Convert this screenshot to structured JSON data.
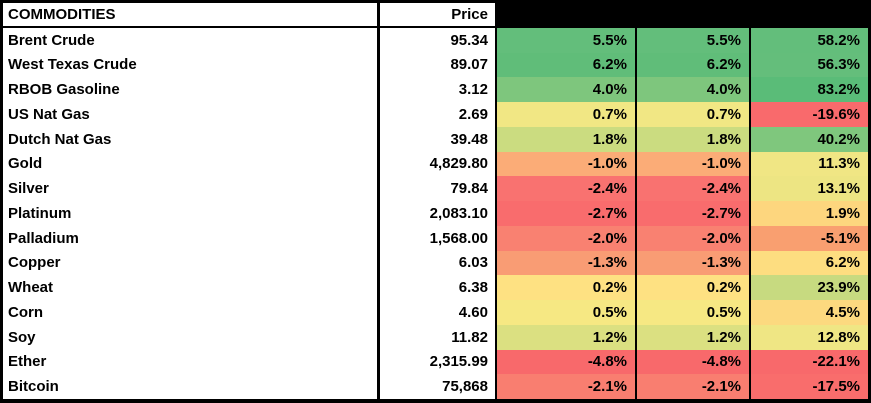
{
  "table": {
    "header": {
      "commodities": "COMMODITIES",
      "price": "Price",
      "change_columns": [
        "",
        "",
        ""
      ]
    },
    "rows": [
      {
        "name": "Brent Crude",
        "price": "95.34",
        "chg1": "5.5%",
        "chg2": "5.5%",
        "chg3": "58.2%",
        "color1": "#63BE7B",
        "color2": "#63BE7B",
        "color3": "#63BE7B"
      },
      {
        "name": "West Texas Crude",
        "price": "89.07",
        "chg1": "6.2%",
        "chg2": "6.2%",
        "chg3": "56.3%",
        "color1": "#60BD79",
        "color2": "#60BD79",
        "color3": "#64BE7B"
      },
      {
        "name": "RBOB Gasoline",
        "price": "3.12",
        "chg1": "4.0%",
        "chg2": "4.0%",
        "chg3": "83.2%",
        "color1": "#7EC67D",
        "color2": "#7EC67D",
        "color3": "#5ABC78"
      },
      {
        "name": "US Nat Gas",
        "price": "2.69",
        "chg1": "0.7%",
        "chg2": "0.7%",
        "chg3": "-19.6%",
        "color1": "#F1E784",
        "color2": "#F1E784",
        "color3": "#F96A6C"
      },
      {
        "name": "Dutch Nat Gas",
        "price": "39.48",
        "chg1": "1.8%",
        "chg2": "1.8%",
        "chg3": "40.2%",
        "color1": "#CBDC80",
        "color2": "#CBDC80",
        "color3": "#7FC77D"
      },
      {
        "name": "Gold",
        "price": "4,829.80",
        "chg1": "-1.0%",
        "chg2": "-1.0%",
        "chg3": "11.3%",
        "color1": "#FBAC77",
        "color2": "#FBAC77",
        "color3": "#F0E684"
      },
      {
        "name": "Silver",
        "price": "79.84",
        "chg1": "-2.4%",
        "chg2": "-2.4%",
        "chg3": "13.1%",
        "color1": "#F97270",
        "color2": "#F97270",
        "color3": "#EDE583"
      },
      {
        "name": "Platinum",
        "price": "2,083.10",
        "chg1": "-2.7%",
        "chg2": "-2.7%",
        "chg3": "1.9%",
        "color1": "#F96C6D",
        "color2": "#F96C6D",
        "color3": "#FDD67E"
      },
      {
        "name": "Palladium",
        "price": "1,568.00",
        "chg1": "-2.0%",
        "chg2": "-2.0%",
        "chg3": "-5.1%",
        "color1": "#F98171",
        "color2": "#F98171",
        "color3": "#F99F70"
      },
      {
        "name": "Copper",
        "price": "6.03",
        "chg1": "-1.3%",
        "chg2": "-1.3%",
        "chg3": "6.2%",
        "color1": "#F99C74",
        "color2": "#F99C74",
        "color3": "#FDDD80"
      },
      {
        "name": "Wheat",
        "price": "6.38",
        "chg1": "0.2%",
        "chg2": "0.2%",
        "chg3": "23.9%",
        "color1": "#FEE182",
        "color2": "#FEE182",
        "color3": "#C7DA80"
      },
      {
        "name": "Corn",
        "price": "4.60",
        "chg1": "0.5%",
        "chg2": "0.5%",
        "chg3": "4.5%",
        "color1": "#F6E883",
        "color2": "#F6E883",
        "color3": "#FCD97F"
      },
      {
        "name": "Soy",
        "price": "11.82",
        "chg1": "1.2%",
        "chg2": "1.2%",
        "chg3": "12.8%",
        "color1": "#DBE081",
        "color2": "#DBE081",
        "color3": "#EFE684"
      },
      {
        "name": "Ether",
        "price": "2,315.99",
        "chg1": "-4.8%",
        "chg2": "-4.8%",
        "chg3": "-22.1%",
        "color1": "#F8696B",
        "color2": "#F8696B",
        "color3": "#F8696B"
      },
      {
        "name": "Bitcoin",
        "price": "75,868",
        "chg1": "-2.1%",
        "chg2": "-2.1%",
        "chg3": "-17.5%",
        "color1": "#F97E70",
        "color2": "#F97E70",
        "color3": "#F96D6C"
      }
    ]
  },
  "chart_data": {
    "type": "table",
    "title": "COMMODITIES",
    "columns": [
      "COMMODITIES",
      "Price",
      "",
      "",
      ""
    ],
    "categories": [
      "Brent Crude",
      "West Texas Crude",
      "RBOB Gasoline",
      "US Nat Gas",
      "Dutch Nat Gas",
      "Gold",
      "Silver",
      "Platinum",
      "Palladium",
      "Copper",
      "Wheat",
      "Corn",
      "Soy",
      "Ether",
      "Bitcoin"
    ],
    "prices": [
      95.34,
      89.07,
      3.12,
      2.69,
      39.48,
      4829.8,
      79.84,
      2083.1,
      1568.0,
      6.03,
      6.38,
      4.6,
      11.82,
      2315.99,
      75868
    ],
    "series": [
      {
        "name": "change_col_1_pct",
        "values": [
          5.5,
          6.2,
          4.0,
          0.7,
          1.8,
          -1.0,
          -2.4,
          -2.7,
          -2.0,
          -1.3,
          0.2,
          0.5,
          1.2,
          -4.8,
          -2.1
        ]
      },
      {
        "name": "change_col_2_pct",
        "values": [
          5.5,
          6.2,
          4.0,
          0.7,
          1.8,
          -1.0,
          -2.4,
          -2.7,
          -2.0,
          -1.3,
          0.2,
          0.5,
          1.2,
          -4.8,
          -2.1
        ]
      },
      {
        "name": "change_col_3_pct",
        "values": [
          58.2,
          56.3,
          83.2,
          -19.6,
          40.2,
          11.3,
          13.1,
          1.9,
          -5.1,
          6.2,
          23.9,
          4.5,
          12.8,
          -22.1,
          -17.5
        ]
      }
    ],
    "color_scale": {
      "min_color": "#F8696B",
      "mid_color": "#FFEB84",
      "max_color": "#63BE7B"
    },
    "layout": {
      "heatmap_on_change_columns": true,
      "change_column_headers_blacked_out": true
    }
  }
}
